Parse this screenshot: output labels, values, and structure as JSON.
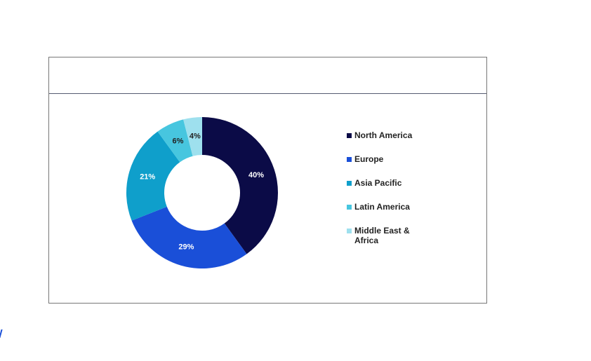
{
  "chart_data": {
    "type": "donut",
    "categories": [
      "North America",
      "Europe",
      "Asia Pacific",
      "Latin America",
      "Middle East & Africa"
    ],
    "values": [
      40,
      29,
      21,
      6,
      4
    ],
    "value_labels": [
      "40%",
      "29%",
      "21%",
      "6%",
      "4%"
    ],
    "colors": [
      "#0b0b47",
      "#1a4fd8",
      "#0f9fcb",
      "#47c6df",
      "#9ee0ee"
    ],
    "legend": "right"
  }
}
